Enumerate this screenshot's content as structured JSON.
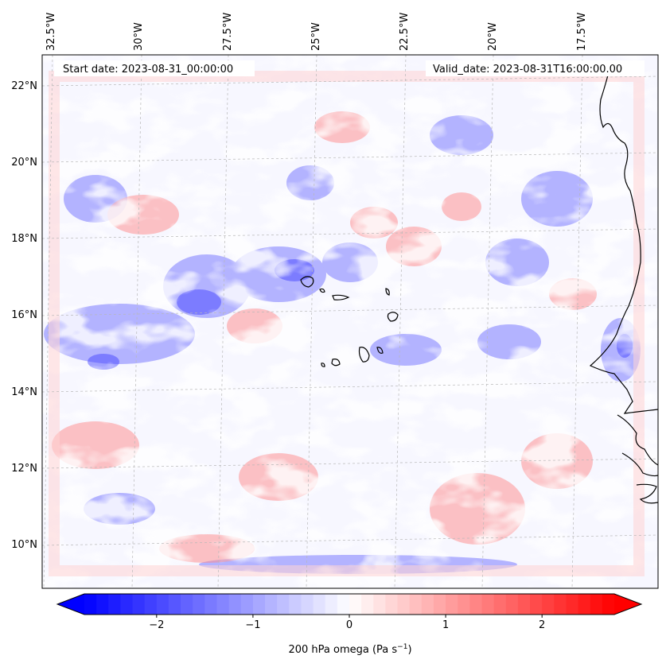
{
  "map": {
    "start_label": "Start date: 2023-08-31_00:00:00",
    "valid_label": "Valid_date: 2023-08-31T16:00:00.00",
    "lon_ticks": [
      "32.5°W",
      "30°W",
      "27.5°W",
      "25°W",
      "22.5°W",
      "20°W",
      "17.5°W"
    ],
    "lat_ticks": [
      "22°N",
      "20°N",
      "18°N",
      "16°N",
      "14°N",
      "12°N",
      "10°N"
    ],
    "gridlines": true
  },
  "colorbar": {
    "label_prefix": "200 hPa omega (Pa s",
    "label_exp": "−1",
    "label_suffix": ")",
    "ticks": [
      "−2",
      "−1",
      "0",
      "1",
      "2"
    ],
    "range": [
      -2.75,
      2.75
    ],
    "colors": {
      "low": "#0000ff",
      "mid": "#ffffff",
      "high": "#ff0000"
    }
  }
}
